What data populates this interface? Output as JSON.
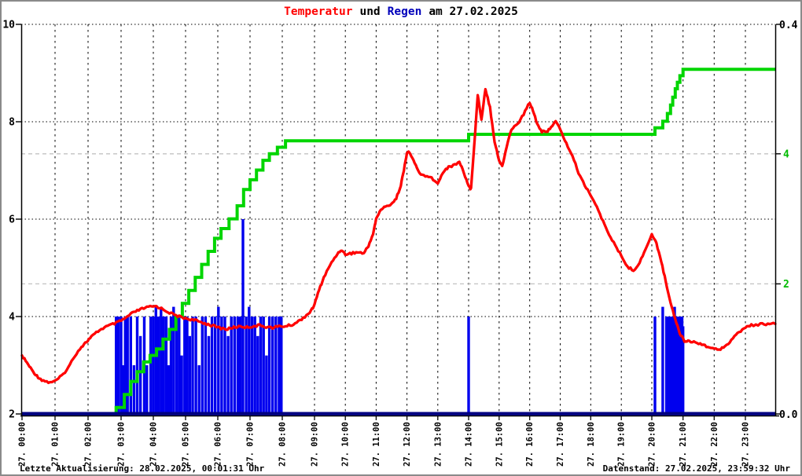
{
  "title": {
    "part1": "Temperatur",
    "part2": "und",
    "part3": "Regen",
    "part4": "am 27.02.2025",
    "color_part1": "#ff0000",
    "color_part3": "#0000bb",
    "color_default": "#000000"
  },
  "status_bar": {
    "left": "Letzte Aktualisierung: 28.02.2025, 00:01:31 Uhr",
    "right": "Datenstand: 27.02.2025, 23:59:32 Uhr"
  },
  "chart_data": {
    "type": "combo",
    "title": "Temperatur und Regen am 27.02.2025",
    "legend_position": "none",
    "grid": "on",
    "x_axis": {
      "labels": [
        "27. 00:00",
        "27. 01:00",
        "27. 02:00",
        "27. 03:00",
        "27. 04:00",
        "27. 05:00",
        "27. 06:00",
        "27. 07:00",
        "27. 08:00",
        "27. 09:00",
        "27. 10:00",
        "27. 11:00",
        "27. 12:00",
        "27. 13:00",
        "27. 14:00",
        "27. 15:00",
        "27. 16:00",
        "27. 17:00",
        "27. 18:00",
        "27. 19:00",
        "27. 20:00",
        "27. 21:00",
        "27. 22:00",
        "27. 23:00"
      ],
      "hours": [
        0,
        1,
        2,
        3,
        4,
        5,
        6,
        7,
        8,
        9,
        10,
        11,
        12,
        13,
        14,
        15,
        16,
        17,
        18,
        19,
        20,
        21,
        22,
        23
      ]
    },
    "y_left_temperature": {
      "min": 2,
      "max": 10,
      "tick_labels": [
        "2",
        "4",
        "6",
        "8",
        "10"
      ],
      "tick_values": [
        2,
        4,
        6,
        8,
        10
      ],
      "label_color": "#000000",
      "major_grid_values": [
        4,
        6,
        8,
        10
      ]
    },
    "y_right_rain_rate": {
      "min": 0.0,
      "max": 0.4,
      "tick_labels": [
        "0.0",
        "0.4"
      ],
      "tick_values": [
        0.0,
        0.4
      ],
      "label_color": "#000000"
    },
    "y_right_rain_sum": {
      "min": 0,
      "max": 6,
      "tick_labels": [
        "2",
        "4"
      ],
      "tick_values": [
        2,
        4
      ],
      "label_color": "#00bb00",
      "grid_values": [
        2,
        4
      ]
    },
    "series": {
      "temperature": {
        "name": "Temperatur",
        "type": "line",
        "color": "#ff0000",
        "axis": "y_left_temperature",
        "points": [
          [
            0.0,
            3.2
          ],
          [
            0.15,
            3.05
          ],
          [
            0.3,
            2.9
          ],
          [
            0.45,
            2.78
          ],
          [
            0.6,
            2.7
          ],
          [
            0.8,
            2.65
          ],
          [
            1.0,
            2.67
          ],
          [
            1.2,
            2.78
          ],
          [
            1.4,
            2.95
          ],
          [
            1.6,
            3.2
          ],
          [
            1.8,
            3.38
          ],
          [
            1.95,
            3.48
          ],
          [
            2.1,
            3.58
          ],
          [
            2.3,
            3.7
          ],
          [
            2.5,
            3.78
          ],
          [
            2.7,
            3.83
          ],
          [
            2.9,
            3.88
          ],
          [
            3.1,
            3.95
          ],
          [
            3.3,
            4.05
          ],
          [
            3.5,
            4.12
          ],
          [
            3.7,
            4.17
          ],
          [
            3.9,
            4.2
          ],
          [
            4.1,
            4.21
          ],
          [
            4.3,
            4.15
          ],
          [
            4.5,
            4.08
          ],
          [
            4.7,
            4.02
          ],
          [
            4.9,
            3.98
          ],
          [
            5.1,
            3.95
          ],
          [
            5.3,
            3.92
          ],
          [
            5.5,
            3.88
          ],
          [
            5.7,
            3.84
          ],
          [
            5.9,
            3.8
          ],
          [
            6.1,
            3.76
          ],
          [
            6.3,
            3.74
          ],
          [
            6.5,
            3.78
          ],
          [
            6.7,
            3.8
          ],
          [
            6.9,
            3.78
          ],
          [
            7.1,
            3.8
          ],
          [
            7.3,
            3.82
          ],
          [
            7.5,
            3.79
          ],
          [
            7.7,
            3.77
          ],
          [
            7.9,
            3.8
          ],
          [
            8.1,
            3.8
          ],
          [
            8.3,
            3.83
          ],
          [
            8.5,
            3.9
          ],
          [
            8.7,
            4.0
          ],
          [
            8.9,
            4.12
          ],
          [
            9.0,
            4.25
          ],
          [
            9.15,
            4.55
          ],
          [
            9.3,
            4.8
          ],
          [
            9.5,
            5.05
          ],
          [
            9.7,
            5.25
          ],
          [
            9.85,
            5.37
          ],
          [
            10.0,
            5.28
          ],
          [
            10.2,
            5.3
          ],
          [
            10.4,
            5.32
          ],
          [
            10.6,
            5.3
          ],
          [
            10.75,
            5.45
          ],
          [
            10.9,
            5.7
          ],
          [
            11.0,
            6.0
          ],
          [
            11.15,
            6.2
          ],
          [
            11.3,
            6.25
          ],
          [
            11.5,
            6.32
          ],
          [
            11.65,
            6.42
          ],
          [
            11.8,
            6.7
          ],
          [
            11.9,
            7.0
          ],
          [
            12.0,
            7.38
          ],
          [
            12.1,
            7.35
          ],
          [
            12.25,
            7.15
          ],
          [
            12.4,
            6.95
          ],
          [
            12.6,
            6.87
          ],
          [
            12.8,
            6.85
          ],
          [
            13.0,
            6.72
          ],
          [
            13.15,
            6.95
          ],
          [
            13.3,
            7.05
          ],
          [
            13.5,
            7.1
          ],
          [
            13.7,
            7.18
          ],
          [
            13.85,
            6.95
          ],
          [
            14.0,
            6.68
          ],
          [
            14.08,
            6.62
          ],
          [
            14.18,
            7.5
          ],
          [
            14.3,
            8.55
          ],
          [
            14.42,
            8.05
          ],
          [
            14.55,
            8.68
          ],
          [
            14.7,
            8.3
          ],
          [
            14.85,
            7.6
          ],
          [
            15.0,
            7.2
          ],
          [
            15.1,
            7.08
          ],
          [
            15.25,
            7.5
          ],
          [
            15.4,
            7.85
          ],
          [
            15.6,
            7.95
          ],
          [
            15.8,
            8.15
          ],
          [
            16.0,
            8.4
          ],
          [
            16.1,
            8.25
          ],
          [
            16.25,
            7.95
          ],
          [
            16.4,
            7.8
          ],
          [
            16.55,
            7.78
          ],
          [
            16.7,
            7.9
          ],
          [
            16.85,
            8.0
          ],
          [
            17.0,
            7.85
          ],
          [
            17.2,
            7.55
          ],
          [
            17.4,
            7.3
          ],
          [
            17.6,
            6.95
          ],
          [
            17.8,
            6.7
          ],
          [
            18.0,
            6.5
          ],
          [
            18.2,
            6.25
          ],
          [
            18.4,
            5.95
          ],
          [
            18.6,
            5.7
          ],
          [
            18.8,
            5.45
          ],
          [
            19.0,
            5.25
          ],
          [
            19.2,
            5.02
          ],
          [
            19.4,
            4.95
          ],
          [
            19.6,
            5.1
          ],
          [
            19.8,
            5.4
          ],
          [
            20.0,
            5.68
          ],
          [
            20.15,
            5.5
          ],
          [
            20.3,
            5.15
          ],
          [
            20.45,
            4.7
          ],
          [
            20.6,
            4.3
          ],
          [
            20.75,
            3.95
          ],
          [
            20.9,
            3.65
          ],
          [
            21.05,
            3.5
          ],
          [
            21.2,
            3.5
          ],
          [
            21.4,
            3.47
          ],
          [
            21.6,
            3.44
          ],
          [
            21.8,
            3.38
          ],
          [
            22.0,
            3.33
          ],
          [
            22.2,
            3.34
          ],
          [
            22.4,
            3.42
          ],
          [
            22.6,
            3.55
          ],
          [
            22.8,
            3.68
          ],
          [
            23.0,
            3.78
          ],
          [
            23.2,
            3.82
          ],
          [
            23.5,
            3.84
          ],
          [
            23.75,
            3.85
          ],
          [
            24.0,
            3.85
          ]
        ]
      },
      "rain_rate": {
        "name": "Regen",
        "type": "bar",
        "color": "#0000ee",
        "baseline_color": "#000080",
        "axis": "y_right_rain_rate",
        "points": [
          [
            2.85,
            0.1
          ],
          [
            2.92,
            0.1
          ],
          [
            3.0,
            0.1
          ],
          [
            3.06,
            0.05
          ],
          [
            3.13,
            0.1
          ],
          [
            3.2,
            0.1
          ],
          [
            3.3,
            0.1
          ],
          [
            3.4,
            0.05
          ],
          [
            3.5,
            0.1
          ],
          [
            3.6,
            0.08
          ],
          [
            3.72,
            0.1
          ],
          [
            3.8,
            0.05
          ],
          [
            3.92,
            0.1
          ],
          [
            4.0,
            0.1
          ],
          [
            4.08,
            0.11
          ],
          [
            4.16,
            0.1
          ],
          [
            4.24,
            0.11
          ],
          [
            4.32,
            0.1
          ],
          [
            4.4,
            0.1
          ],
          [
            4.47,
            0.05
          ],
          [
            4.55,
            0.1
          ],
          [
            4.63,
            0.11
          ],
          [
            4.72,
            0.1
          ],
          [
            4.8,
            0.1
          ],
          [
            4.88,
            0.06
          ],
          [
            4.97,
            0.1
          ],
          [
            5.05,
            0.1
          ],
          [
            5.13,
            0.08
          ],
          [
            5.22,
            0.1
          ],
          [
            5.32,
            0.1
          ],
          [
            5.42,
            0.05
          ],
          [
            5.52,
            0.1
          ],
          [
            5.62,
            0.1
          ],
          [
            5.72,
            0.08
          ],
          [
            5.82,
            0.1
          ],
          [
            5.92,
            0.1
          ],
          [
            6.02,
            0.11
          ],
          [
            6.12,
            0.1
          ],
          [
            6.22,
            0.1
          ],
          [
            6.32,
            0.08
          ],
          [
            6.42,
            0.1
          ],
          [
            6.52,
            0.1
          ],
          [
            6.62,
            0.1
          ],
          [
            6.7,
            0.1
          ],
          [
            6.78,
            0.2
          ],
          [
            6.88,
            0.1
          ],
          [
            6.97,
            0.11
          ],
          [
            7.06,
            0.1
          ],
          [
            7.15,
            0.1
          ],
          [
            7.24,
            0.08
          ],
          [
            7.33,
            0.1
          ],
          [
            7.42,
            0.1
          ],
          [
            7.51,
            0.06
          ],
          [
            7.6,
            0.1
          ],
          [
            7.7,
            0.1
          ],
          [
            7.8,
            0.1
          ],
          [
            7.9,
            0.1
          ],
          [
            7.97,
            0.1
          ],
          [
            14.0,
            0.1
          ],
          [
            20.1,
            0.1
          ],
          [
            20.35,
            0.11
          ],
          [
            20.47,
            0.1
          ],
          [
            20.5,
            0.1
          ],
          [
            20.53,
            0.1
          ],
          [
            20.57,
            0.1
          ],
          [
            20.6,
            0.1
          ],
          [
            20.63,
            0.1
          ],
          [
            20.67,
            0.1
          ],
          [
            20.7,
            0.1
          ],
          [
            20.73,
            0.11
          ],
          [
            20.77,
            0.1
          ],
          [
            20.8,
            0.1
          ],
          [
            20.83,
            0.1
          ],
          [
            20.87,
            0.1
          ],
          [
            20.9,
            0.1
          ],
          [
            20.93,
            0.1
          ],
          [
            20.97,
            0.1
          ],
          [
            21.0,
            0.09
          ]
        ]
      },
      "rain_sum": {
        "name": "Regensumme",
        "type": "step",
        "color": "#00d500",
        "axis": "y_right_rain_sum",
        "points": [
          [
            0.0,
            0.0
          ],
          [
            2.85,
            0.1
          ],
          [
            3.1,
            0.3
          ],
          [
            3.3,
            0.5
          ],
          [
            3.5,
            0.65
          ],
          [
            3.7,
            0.8
          ],
          [
            3.9,
            0.9
          ],
          [
            4.1,
            1.0
          ],
          [
            4.3,
            1.15
          ],
          [
            4.5,
            1.3
          ],
          [
            4.7,
            1.5
          ],
          [
            4.9,
            1.7
          ],
          [
            5.1,
            1.9
          ],
          [
            5.3,
            2.1
          ],
          [
            5.5,
            2.3
          ],
          [
            5.7,
            2.5
          ],
          [
            5.9,
            2.7
          ],
          [
            6.1,
            2.85
          ],
          [
            6.35,
            3.0
          ],
          [
            6.6,
            3.2
          ],
          [
            6.8,
            3.45
          ],
          [
            7.0,
            3.6
          ],
          [
            7.2,
            3.75
          ],
          [
            7.4,
            3.9
          ],
          [
            7.6,
            4.0
          ],
          [
            7.85,
            4.1
          ],
          [
            8.1,
            4.2
          ],
          [
            14.0,
            4.3
          ],
          [
            20.1,
            4.4
          ],
          [
            20.35,
            4.5
          ],
          [
            20.5,
            4.62
          ],
          [
            20.6,
            4.75
          ],
          [
            20.67,
            4.87
          ],
          [
            20.75,
            5.0
          ],
          [
            20.82,
            5.1
          ],
          [
            20.9,
            5.2
          ],
          [
            21.0,
            5.3
          ],
          [
            24.0,
            5.3
          ]
        ]
      }
    }
  }
}
